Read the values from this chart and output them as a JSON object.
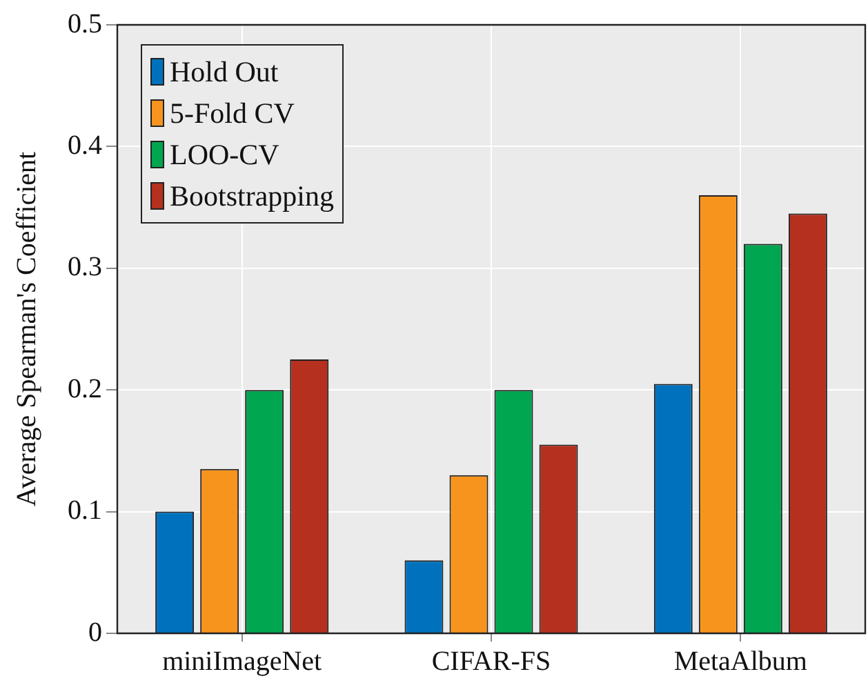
{
  "chart_data": {
    "type": "bar",
    "ylabel": "Average Spearman's Coefficient",
    "categories": [
      "miniImageNet",
      "CIFAR-FS",
      "MetaAlbum"
    ],
    "series": [
      {
        "name": "Hold Out",
        "color": "#0072bd",
        "values": [
          0.1,
          0.06,
          0.205
        ]
      },
      {
        "name": "5-Fold CV",
        "color": "#f7941e",
        "values": [
          0.135,
          0.13,
          0.36
        ]
      },
      {
        "name": "LOO-CV",
        "color": "#00a650",
        "values": [
          0.2,
          0.2,
          0.32
        ]
      },
      {
        "name": "Bootstrapping",
        "color": "#b5301e",
        "values": [
          0.225,
          0.155,
          0.345
        ]
      }
    ],
    "ylim": [
      0,
      0.5
    ],
    "yticks": [
      0,
      0.1,
      0.2,
      0.3,
      0.4,
      0.5
    ],
    "grid": true,
    "legend": "top left"
  }
}
